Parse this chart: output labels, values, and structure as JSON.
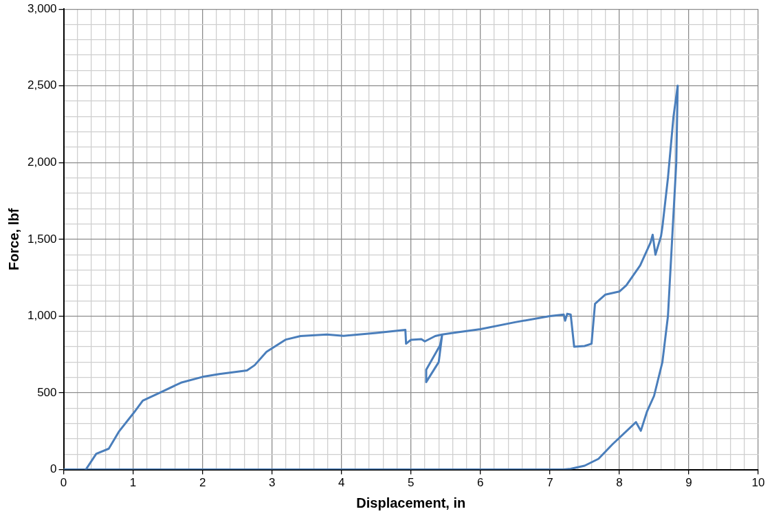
{
  "chart_data": {
    "type": "line",
    "xlabel": "Displacement, in",
    "ylabel": "Force, lbf",
    "xlim": [
      0,
      10
    ],
    "ylim": [
      0,
      3000
    ],
    "xticks": [
      0,
      {
        "value": 0.2,
        "label": null
      },
      {
        "value": 0.4,
        "label": null
      },
      {
        "value": 0.6,
        "label": null
      },
      {
        "value": 0.8,
        "label": null
      },
      1,
      {
        "value": 1.2,
        "label": null
      },
      {
        "value": 1.4,
        "label": null
      },
      {
        "value": 1.6,
        "label": null
      },
      {
        "value": 1.8,
        "label": null
      },
      2,
      {
        "value": 2.2,
        "label": null
      },
      {
        "value": 2.4,
        "label": null
      },
      {
        "value": 2.6,
        "label": null
      },
      {
        "value": 2.8,
        "label": null
      },
      3,
      {
        "value": 3.2,
        "label": null
      },
      {
        "value": 3.4,
        "label": null
      },
      {
        "value": 3.6,
        "label": null
      },
      {
        "value": 3.8,
        "label": null
      },
      4,
      {
        "value": 4.2,
        "label": null
      },
      {
        "value": 4.4,
        "label": null
      },
      {
        "value": 4.6,
        "label": null
      },
      {
        "value": 4.8,
        "label": null
      },
      5,
      {
        "value": 5.2,
        "label": null
      },
      {
        "value": 5.4,
        "label": null
      },
      {
        "value": 5.6,
        "label": null
      },
      {
        "value": 5.8,
        "label": null
      },
      6,
      {
        "value": 6.2,
        "label": null
      },
      {
        "value": 6.4,
        "label": null
      },
      {
        "value": 6.6,
        "label": null
      },
      {
        "value": 6.8,
        "label": null
      },
      7,
      {
        "value": 7.2,
        "label": null
      },
      {
        "value": 7.4,
        "label": null
      },
      {
        "value": 7.6,
        "label": null
      },
      {
        "value": 7.8,
        "label": null
      },
      8,
      {
        "value": 8.2,
        "label": null
      },
      {
        "value": 8.4,
        "label": null
      },
      {
        "value": 8.6,
        "label": null
      },
      {
        "value": 8.8,
        "label": null
      },
      9,
      {
        "value": 9.2,
        "label": null
      },
      {
        "value": 9.4,
        "label": null
      },
      {
        "value": 9.6,
        "label": null
      },
      {
        "value": 9.8,
        "label": null
      },
      10
    ],
    "yticks": [
      0,
      {
        "value": 100,
        "label": null
      },
      {
        "value": 200,
        "label": null
      },
      {
        "value": 300,
        "label": null
      },
      {
        "value": 400,
        "label": null
      },
      500,
      {
        "value": 600,
        "label": null
      },
      {
        "value": 700,
        "label": null
      },
      {
        "value": 800,
        "label": null
      },
      {
        "value": 900,
        "label": null
      },
      {
        "value": 1000,
        "label": "1,000"
      },
      {
        "value": 1100,
        "label": null
      },
      {
        "value": 1200,
        "label": null
      },
      {
        "value": 1300,
        "label": null
      },
      {
        "value": 1400,
        "label": null
      },
      {
        "value": 1500,
        "label": "1,500"
      },
      {
        "value": 1600,
        "label": null
      },
      {
        "value": 1700,
        "label": null
      },
      {
        "value": 1800,
        "label": null
      },
      {
        "value": 1900,
        "label": null
      },
      {
        "value": 2000,
        "label": "2,000"
      },
      {
        "value": 2100,
        "label": null
      },
      {
        "value": 2200,
        "label": null
      },
      {
        "value": 2300,
        "label": null
      },
      {
        "value": 2400,
        "label": null
      },
      {
        "value": 2500,
        "label": "2,500"
      },
      {
        "value": 2600,
        "label": null
      },
      {
        "value": 2700,
        "label": null
      },
      {
        "value": 2800,
        "label": null
      },
      {
        "value": 2900,
        "label": null
      },
      {
        "value": 3000,
        "label": "3,000"
      }
    ],
    "grid": true,
    "legend": false,
    "marker": "none",
    "line_style": "solid",
    "series": [
      {
        "color": "#4a7ebb",
        "x": [
          0.32,
          0.47,
          0.65,
          0.8,
          1.01,
          1.14,
          1.38,
          1.69,
          2.0,
          2.24,
          2.64,
          2.75,
          2.92,
          3.2,
          3.41,
          3.79,
          4.03,
          4.5,
          4.92,
          4.93,
          5.0,
          5.15,
          5.2,
          5.35,
          5.45,
          5.4,
          5.22,
          5.22,
          5.42,
          5.45,
          5.6,
          6.0,
          6.5,
          7.0,
          7.2,
          7.22,
          7.25,
          7.3,
          7.35,
          7.5,
          7.6,
          7.65,
          7.8,
          8.0,
          8.1,
          8.3,
          8.45,
          8.48,
          8.52,
          8.6,
          8.62,
          8.7,
          8.78,
          8.84
        ],
        "values": [
          0,
          103,
          136,
          250,
          370,
          449,
          500,
          566,
          604,
          622,
          646,
          680,
          767,
          847,
          870,
          880,
          871,
          890,
          910,
          820,
          845,
          850,
          835,
          870,
          880,
          700,
          570,
          650,
          810,
          880,
          890,
          915,
          960,
          1000,
          1010,
          970,
          1015,
          1010,
          800,
          805,
          820,
          1080,
          1140,
          1160,
          1200,
          1330,
          1480,
          1530,
          1400,
          1520,
          1580,
          1900,
          2300,
          2500
        ]
      },
      {
        "color": "#4a7ebb",
        "x": [
          0,
          7.2,
          7.3,
          7.5,
          7.7,
          7.9,
          8.24,
          8.31,
          8.4,
          8.5,
          8.62,
          8.7,
          8.76,
          8.82,
          8.84
        ],
        "values": [
          0,
          0,
          5,
          25,
          70,
          164,
          309,
          253,
          380,
          480,
          700,
          1000,
          1500,
          2000,
          2500
        ]
      }
    ]
  }
}
